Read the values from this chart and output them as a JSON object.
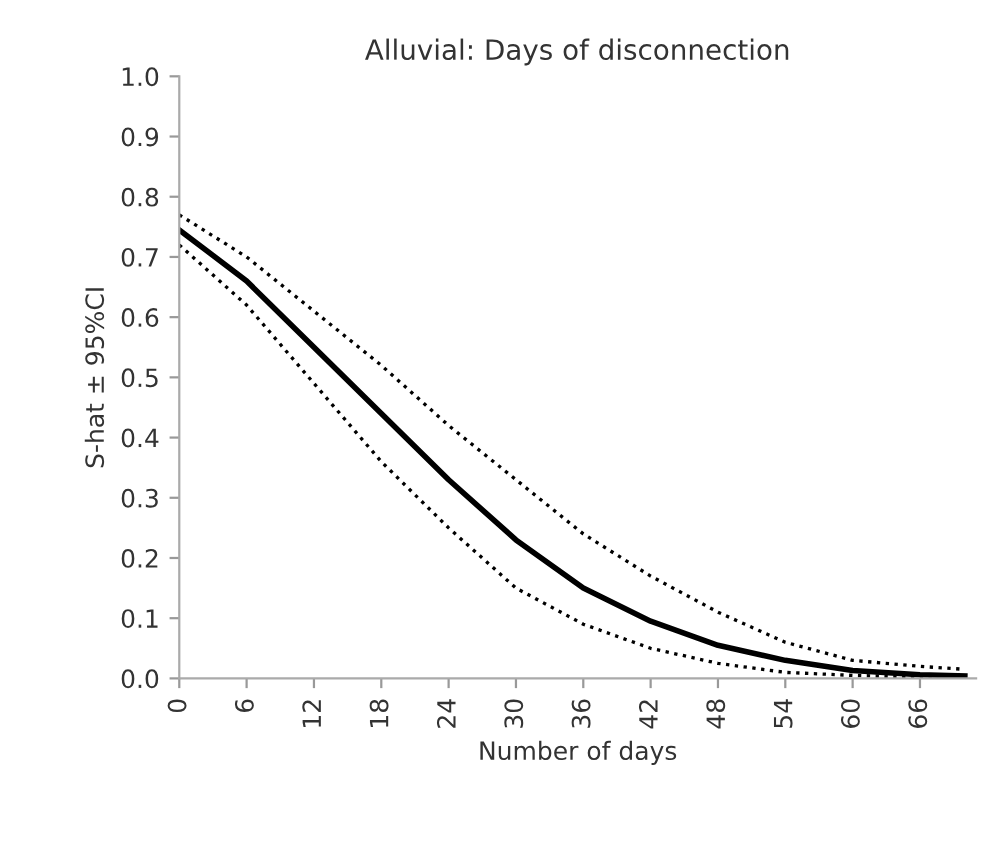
{
  "chart_data": {
    "type": "line",
    "title": "Alluvial: Days of disconnection",
    "xlabel": "Number of days",
    "ylabel": "S-hat ± 95%CI",
    "x": [
      0,
      6,
      12,
      18,
      24,
      30,
      36,
      42,
      48,
      54,
      60,
      66,
      70
    ],
    "series": [
      {
        "color": "#000000",
        "line_style": "dotted",
        "values": [
          0.77,
          0.7,
          0.61,
          0.52,
          0.42,
          0.33,
          0.24,
          0.17,
          0.11,
          0.06,
          0.03,
          0.02,
          0.015
        ]
      },
      {
        "color": "#000000",
        "line_style": "solid",
        "values": [
          0.745,
          0.66,
          0.55,
          0.44,
          0.33,
          0.23,
          0.15,
          0.095,
          0.055,
          0.03,
          0.013,
          0.006,
          0.004
        ]
      },
      {
        "color": "#000000",
        "line_style": "dotted",
        "values": [
          0.72,
          0.62,
          0.49,
          0.36,
          0.25,
          0.15,
          0.09,
          0.05,
          0.025,
          0.01,
          0.005,
          0.002,
          0.0
        ]
      }
    ],
    "xlim": [
      0,
      71
    ],
    "xticks": [
      0,
      6,
      12,
      18,
      24,
      30,
      36,
      42,
      48,
      54,
      60,
      66
    ],
    "ylim": [
      0,
      1.0
    ],
    "yticks": [
      {
        "value": 0,
        "label": "0.0"
      },
      0.1,
      0.2,
      0.3,
      0.4,
      0.5,
      0.6,
      0.7,
      0.8,
      0.9,
      {
        "value": 1,
        "label": "1.0"
      }
    ],
    "marker": "none"
  }
}
